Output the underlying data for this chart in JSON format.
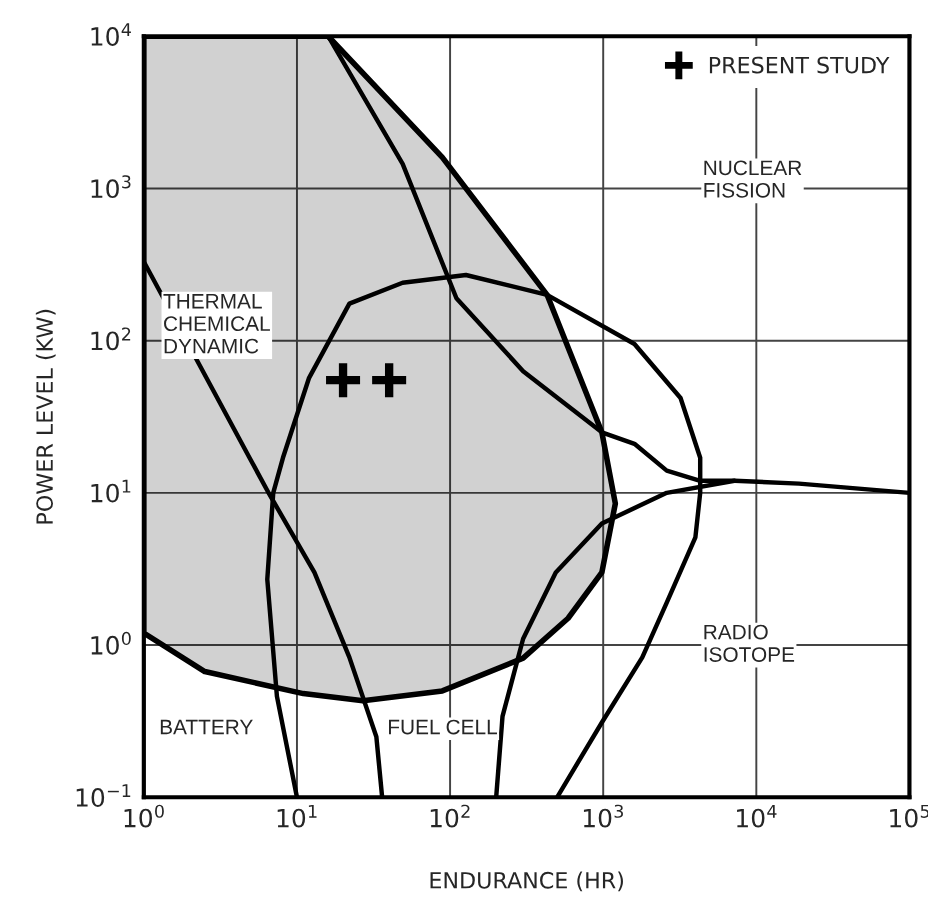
{
  "chart_data": {
    "type": "line",
    "xlabel": "ENDURANCE (HR)",
    "ylabel": "POWER LEVEL (KW)",
    "log": "xy",
    "grid": true,
    "legend": "top right",
    "xlim": [
      1,
      100000
    ],
    "ylim": [
      0.1,
      10000
    ],
    "xticks": [
      {
        "value": 1,
        "label": "10$^{0}$"
      },
      {
        "value": 10,
        "label": "10$^{1}$"
      },
      {
        "value": 100,
        "label": "10$^{2}$"
      },
      {
        "value": 1000,
        "label": "10$^{3}$"
      },
      {
        "value": 10000,
        "label": "10$^{4}$"
      },
      {
        "value": 100000,
        "label": "10$^{5}$"
      }
    ],
    "yticks": [
      {
        "value": 0.1,
        "label": "10$^{−1}$"
      },
      {
        "value": 1,
        "label": "10$^{0}$"
      },
      {
        "value": 10,
        "label": "10$^{1}$"
      },
      {
        "value": 100,
        "label": "10$^{2}$"
      },
      {
        "value": 1000,
        "label": "10$^{3}$"
      },
      {
        "value": 10000,
        "label": "10$^{4}$"
      }
    ],
    "series": [
      {
        "type": "area",
        "color": "#000000",
        "x": [
          16,
          89,
          430,
          980,
          1200,
          980,
          590,
          300,
          89,
          27,
          11,
          2.5,
          1,
          1,
          16
        ],
        "values": [
          10000,
          1600,
          200,
          25,
          8.5,
          3.0,
          1.5,
          0.82,
          0.5,
          0.43,
          0.48,
          0.67,
          1.2,
          10000,
          10000
        ]
      },
      {
        "color": "#000000",
        "x": [
          10,
          7.4,
          6.4,
          7,
          8.1,
          12,
          22,
          49,
          127,
          430,
          1600,
          3200,
          4300,
          4300,
          4000,
          2600,
          1800,
          980,
          500
        ],
        "values": [
          0.1,
          0.46,
          2.7,
          10,
          17,
          57,
          175,
          240,
          270,
          200,
          95,
          42,
          17,
          10,
          5.1,
          1.9,
          0.83,
          0.31,
          0.1
        ]
      },
      {
        "color": "#000000",
        "x": [
          1,
          4.9,
          6.6,
          13,
          22,
          33,
          36
        ],
        "values": [
          330,
          17,
          9.8,
          3.0,
          0.83,
          0.25,
          0.1
        ]
      },
      {
        "color": "#000000",
        "x": [
          16,
          49,
          110,
          300,
          980,
          1600,
          2600,
          4300,
          7200,
          19000,
          100000
        ],
        "values": [
          10000,
          1450,
          190,
          63,
          25,
          21,
          14,
          12,
          12,
          11.5,
          10
        ]
      },
      {
        "color": "#000000",
        "x": [
          7200,
          2600,
          980,
          490,
          300,
          220,
          200
        ],
        "values": [
          12,
          10,
          6.3,
          3.0,
          1.1,
          0.34,
          0.1
        ]
      },
      {
        "type": "scatter",
        "name": "PRESENT STUDY",
        "color": "#000000",
        "marker": "cross",
        "x": [
          20,
          40
        ],
        "values": [
          55,
          55
        ]
      }
    ],
    "annotations": [
      "THERMAL\nCHEMICAL\nDYNAMIC",
      "NUCLEAR\nFISSION",
      "RADIO\nISOTOPE",
      "BATTERY",
      "FUEL CELL"
    ]
  }
}
